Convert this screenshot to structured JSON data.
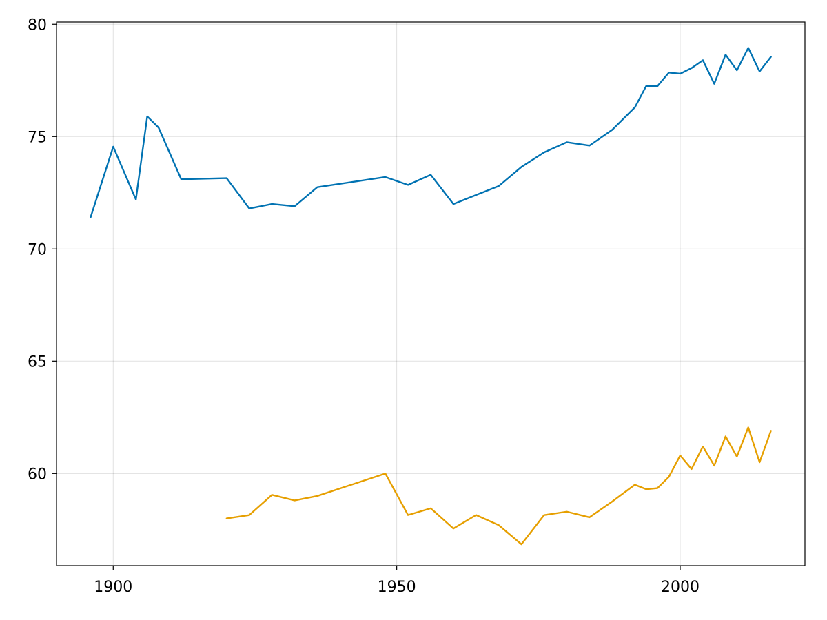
{
  "chart_data": {
    "type": "line",
    "title": "",
    "xlabel": "",
    "ylabel": "",
    "xlim": [
      1890,
      2022
    ],
    "ylim": [
      55.9,
      80.1
    ],
    "x_ticks": [
      1900,
      1950,
      2000
    ],
    "x_tick_labels": [
      "1900",
      "1950",
      "2000"
    ],
    "y_ticks": [
      60,
      65,
      70,
      75,
      80
    ],
    "y_tick_labels": [
      "60",
      "65",
      "70",
      "75",
      "80"
    ],
    "grid": true,
    "legend": "none",
    "series": [
      {
        "color": "#0072b2",
        "x": [
          1896,
          1900,
          1904,
          1906,
          1908,
          1912,
          1920,
          1924,
          1928,
          1932,
          1936,
          1948,
          1952,
          1956,
          1960,
          1964,
          1968,
          1972,
          1976,
          1980,
          1984,
          1988,
          1992,
          1994,
          1996,
          1998,
          2000,
          2002,
          2004,
          2006,
          2008,
          2010,
          2012,
          2014,
          2016
        ],
        "y": [
          71.4,
          74.55,
          72.2,
          75.9,
          75.4,
          73.1,
          73.15,
          71.8,
          72.0,
          71.9,
          72.75,
          73.2,
          72.85,
          73.3,
          72.0,
          72.4,
          72.8,
          73.65,
          74.3,
          74.75,
          74.6,
          75.3,
          76.3,
          77.25,
          77.25,
          77.85,
          77.8,
          78.05,
          78.4,
          77.35,
          78.65,
          77.95,
          78.95,
          77.9,
          78.55
        ]
      },
      {
        "color": "#e69f00",
        "x": [
          1920,
          1924,
          1928,
          1932,
          1936,
          1948,
          1952,
          1956,
          1960,
          1964,
          1968,
          1972,
          1976,
          1980,
          1984,
          1988,
          1992,
          1994,
          1996,
          1998,
          2000,
          2002,
          2004,
          2006,
          2008,
          2010,
          2012,
          2014,
          2016
        ],
        "y": [
          58.0,
          58.15,
          59.05,
          58.8,
          59.0,
          60.0,
          58.15,
          58.45,
          57.55,
          58.15,
          57.7,
          56.85,
          58.15,
          58.3,
          58.05,
          58.75,
          59.5,
          59.3,
          59.35,
          59.85,
          60.8,
          60.2,
          61.2,
          60.35,
          61.65,
          60.75,
          62.05,
          60.5,
          61.9
        ]
      }
    ]
  }
}
